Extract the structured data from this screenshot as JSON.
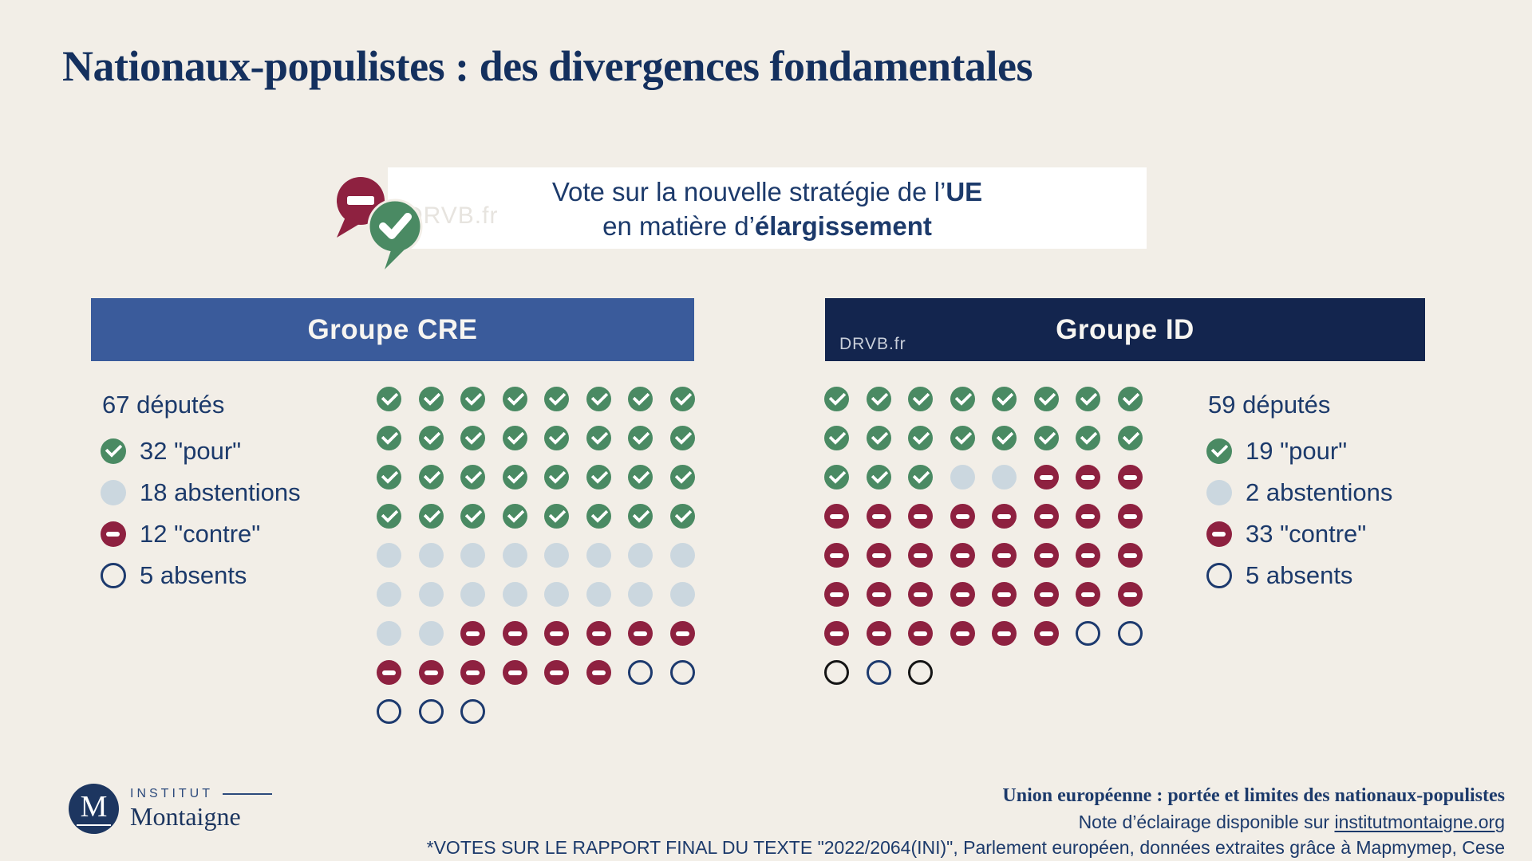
{
  "title": "Nationaux-populistes : des divergences fondamentales",
  "vote_box": {
    "line1_pre": "Vote sur la nouvelle stratégie de l’",
    "line1_bold": "UE",
    "line2_pre": "en matière d’",
    "line2_bold": "élargissement",
    "watermark": "DRVB.fr"
  },
  "colors": {
    "bg": "#f2eee7",
    "ink": "#1c3a6b",
    "title": "#14305e",
    "cre": "#3a5b9b",
    "idnavy": "#13254e",
    "green": "#4a8a63",
    "red": "#8e2140",
    "abst": "#cbd7df",
    "absent": "#1d3a6e",
    "absentdark": "#151515"
  },
  "groups": [
    {
      "name": "Groupe CRE",
      "deputies": "67 députés",
      "legend": [
        {
          "icon": "pour",
          "label": "32 \"pour\""
        },
        {
          "icon": "abstention",
          "label": "18 abstentions"
        },
        {
          "icon": "contre",
          "label": "12 \"contre\""
        },
        {
          "icon": "absent",
          "label": "5 absents"
        }
      ],
      "matrix": [
        "PPPPPPPP",
        "PPPPPPPP",
        "PPPPPPPP",
        "PPPPPPPP",
        "AAAAAAAA",
        "AAAAAAAA",
        "AACCCCCC",
        "CCCCCCOO",
        "OOO"
      ]
    },
    {
      "name": "Groupe ID",
      "watermark": "DRVB.fr",
      "deputies": "59 députés",
      "legend": [
        {
          "icon": "pour",
          "label": "19 \"pour\""
        },
        {
          "icon": "abstention",
          "label": "2 abstentions"
        },
        {
          "icon": "contre",
          "label": "33 \"contre\""
        },
        {
          "icon": "absent",
          "label": "5 absents"
        }
      ],
      "matrix": [
        "PPPPPPPP",
        "PPPPPPPP",
        "PPPAACCC",
        "CCCCCCCC",
        "CCCCCCCC",
        "CCCCCCCC",
        "CCCCCCOO",
        "KOK"
      ]
    }
  ],
  "footer": {
    "report_title": "Union européenne : portée et limites des nationaux-populistes",
    "note_pre": "Note d’éclairage disponible sur ",
    "note_link": "institutmontaigne.org",
    "source": "*VOTES SUR LE RAPPORT FINAL DU TEXTE \"2022/2064(INI)\", Parlement européen, données extraites grâce à Mapmymep, Cese",
    "logo": {
      "initial": "M",
      "institut": "INSTITUT",
      "montaigne": "Montaigne"
    }
  },
  "chart_data": {
    "type": "waffle",
    "title": "Vote sur la nouvelle stratégie de l’UE en matière d’élargissement",
    "categories": [
      "pour",
      "abstentions",
      "contre",
      "absents"
    ],
    "series": [
      {
        "name": "Groupe CRE",
        "total_deputies": 67,
        "values": [
          32,
          18,
          12,
          5
        ]
      },
      {
        "name": "Groupe ID",
        "total_deputies": 59,
        "values": [
          19,
          2,
          33,
          5
        ]
      }
    ],
    "legend_position": "CRE: left of matrix, ID: right of matrix",
    "category_colors": {
      "pour": "#4a8a63",
      "abstentions": "#cbd7df",
      "contre": "#8e2140",
      "absents": "outlined circle"
    }
  }
}
